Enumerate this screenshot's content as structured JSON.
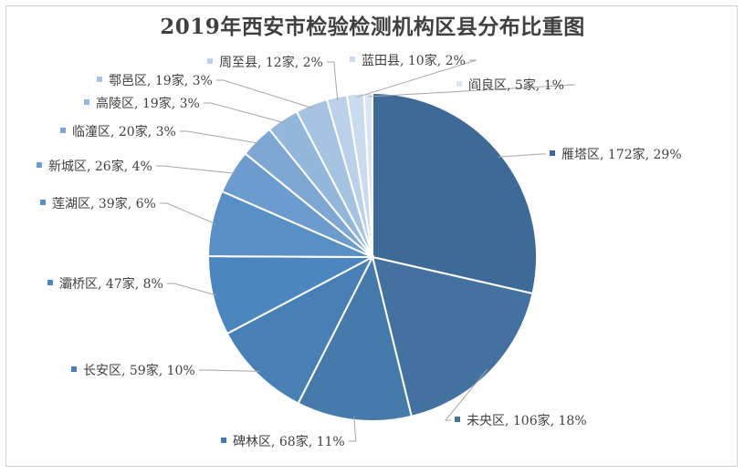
{
  "chart_data": {
    "type": "pie",
    "title": "2019年西安市检验检测机构区县分布比重图",
    "slices": [
      {
        "name": "雁塔区",
        "value": 172,
        "unit": "家",
        "percent": "29%",
        "label": "雁塔区, 172家, 29%",
        "color": "#3d6a96"
      },
      {
        "name": "未央区",
        "value": 106,
        "unit": "家",
        "percent": "18%",
        "label": "未央区, 106家, 18%",
        "color": "#4372a0"
      },
      {
        "name": "碑林区",
        "value": 68,
        "unit": "家",
        "percent": "11%",
        "label": "碑林区, 68家, 11%",
        "color": "#467aaa"
      },
      {
        "name": "长安区",
        "value": 59,
        "unit": "家",
        "percent": "10%",
        "label": "长安区, 59家, 10%",
        "color": "#4880b5"
      },
      {
        "name": "灞桥区",
        "value": 47,
        "unit": "家",
        "percent": "8%",
        "label": "灞桥区, 47家, 8%",
        "color": "#4b87be"
      },
      {
        "name": "莲湖区",
        "value": 39,
        "unit": "家",
        "percent": "6%",
        "label": "莲湖区, 39家, 6%",
        "color": "#5890c6"
      },
      {
        "name": "新城区",
        "value": 26,
        "unit": "家",
        "percent": "4%",
        "label": "新城区, 26家, 4%",
        "color": "#6b9ccd"
      },
      {
        "name": "临潼区",
        "value": 20,
        "unit": "家",
        "percent": "3%",
        "label": "临潼区, 20家, 3%",
        "color": "#7ea8d3"
      },
      {
        "name": "高陵区",
        "value": 19,
        "unit": "家",
        "percent": "3%",
        "label": "高陵区, 19家, 3%",
        "color": "#93b6db"
      },
      {
        "name": "鄠邑区",
        "value": 19,
        "unit": "家",
        "percent": "3%",
        "label": "鄠邑区, 19家, 3%",
        "color": "#a7c3e2"
      },
      {
        "name": "周至县",
        "value": 12,
        "unit": "家",
        "percent": "2%",
        "label": "周至县, 12家, 2%",
        "color": "#bbd0e9"
      },
      {
        "name": "蓝田县",
        "value": 10,
        "unit": "家",
        "percent": "2%",
        "label": "蓝田县, 10家, 2%",
        "color": "#cbdbee"
      },
      {
        "name": "阎良区",
        "value": 5,
        "unit": "家",
        "percent": "1%",
        "label": "阎良区, 5家, 1%",
        "color": "#dae5f3"
      }
    ]
  }
}
